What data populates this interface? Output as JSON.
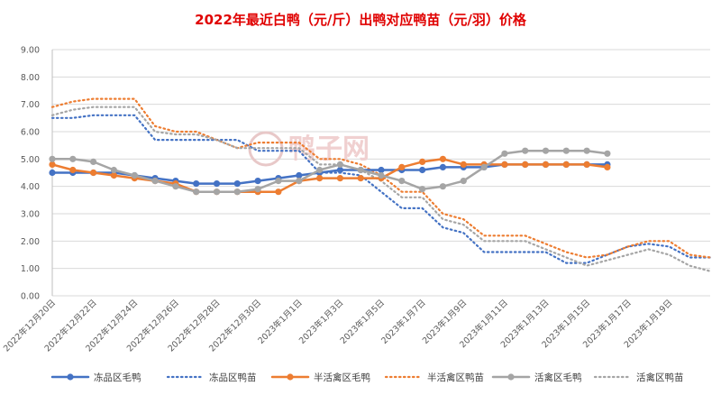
{
  "chart_data": {
    "type": "line",
    "title": "2022年最近白鸭（元/斤）出鸭对应鸭苗（元/羽）价格",
    "title_color": "#e00000",
    "watermark": "鸭子网",
    "ylim": [
      0,
      9
    ],
    "yticks": [
      "0.00",
      "1.00",
      "2.00",
      "3.00",
      "4.00",
      "5.00",
      "6.00",
      "7.00",
      "8.00",
      "9.00"
    ],
    "x_ticks": [
      "2022年12月20日",
      "2022年12月22日",
      "2022年12月24日",
      "2022年12月26日",
      "2022年12月28日",
      "2022年12月30日",
      "2023年1月1日",
      "2023年1月3日",
      "2023年1月5日",
      "2023年1月7日",
      "2023年1月9日",
      "2023年1月11日",
      "2023年1月13日",
      "2023年1月15日",
      "2023年1月17日",
      "2023年1月19日"
    ],
    "x_start": "2022-12-20",
    "x_end": "2023-01-21",
    "grid": true,
    "legend_position": "bottom",
    "series": [
      {
        "name": "冻品区毛鸭",
        "style": "solid",
        "color": "#4472c4",
        "markers": true,
        "points": [
          [
            "2022-12-20",
            4.5
          ],
          [
            "2022-12-21",
            4.5
          ],
          [
            "2022-12-22",
            4.5
          ],
          [
            "2022-12-23",
            4.5
          ],
          [
            "2022-12-24",
            4.4
          ],
          [
            "2022-12-25",
            4.3
          ],
          [
            "2022-12-26",
            4.2
          ],
          [
            "2022-12-27",
            4.1
          ],
          [
            "2022-12-28",
            4.1
          ],
          [
            "2022-12-29",
            4.1
          ],
          [
            "2022-12-30",
            4.2
          ],
          [
            "2022-12-31",
            4.3
          ],
          [
            "2023-01-01",
            4.4
          ],
          [
            "2023-01-02",
            4.5
          ],
          [
            "2023-01-03",
            4.6
          ],
          [
            "2023-01-04",
            4.6
          ],
          [
            "2023-01-05",
            4.6
          ],
          [
            "2023-01-06",
            4.6
          ],
          [
            "2023-01-07",
            4.6
          ],
          [
            "2023-01-08",
            4.7
          ],
          [
            "2023-01-09",
            4.7
          ],
          [
            "2023-01-10",
            4.7
          ],
          [
            "2023-01-11",
            4.8
          ],
          [
            "2023-01-12",
            4.8
          ],
          [
            "2023-01-13",
            4.8
          ],
          [
            "2023-01-14",
            4.8
          ],
          [
            "2023-01-15",
            4.8
          ],
          [
            "2023-01-16",
            4.8
          ]
        ]
      },
      {
        "name": "冻品区鸭苗",
        "style": "dotted",
        "color": "#4472c4",
        "markers": false,
        "points": [
          [
            "2022-12-20",
            6.5
          ],
          [
            "2022-12-21",
            6.5
          ],
          [
            "2022-12-22",
            6.6
          ],
          [
            "2022-12-23",
            6.6
          ],
          [
            "2022-12-24",
            6.6
          ],
          [
            "2022-12-25",
            5.7
          ],
          [
            "2022-12-26",
            5.7
          ],
          [
            "2022-12-27",
            5.7
          ],
          [
            "2022-12-28",
            5.7
          ],
          [
            "2022-12-29",
            5.7
          ],
          [
            "2022-12-30",
            5.3
          ],
          [
            "2022-12-31",
            5.3
          ],
          [
            "2023-01-01",
            5.3
          ],
          [
            "2023-01-02",
            4.5
          ],
          [
            "2023-01-03",
            4.5
          ],
          [
            "2023-01-04",
            4.4
          ],
          [
            "2023-01-05",
            3.8
          ],
          [
            "2023-01-06",
            3.2
          ],
          [
            "2023-01-07",
            3.2
          ],
          [
            "2023-01-08",
            2.5
          ],
          [
            "2023-01-09",
            2.3
          ],
          [
            "2023-01-10",
            1.6
          ],
          [
            "2023-01-11",
            1.6
          ],
          [
            "2023-01-12",
            1.6
          ],
          [
            "2023-01-13",
            1.6
          ],
          [
            "2023-01-14",
            1.2
          ],
          [
            "2023-01-15",
            1.2
          ],
          [
            "2023-01-16",
            1.5
          ],
          [
            "2023-01-17",
            1.8
          ],
          [
            "2023-01-18",
            1.9
          ],
          [
            "2023-01-19",
            1.8
          ],
          [
            "2023-01-20",
            1.4
          ],
          [
            "2023-01-21",
            1.4
          ]
        ]
      },
      {
        "name": "半活禽区毛鸭",
        "style": "solid",
        "color": "#ed7d31",
        "markers": true,
        "points": [
          [
            "2022-12-20",
            4.8
          ],
          [
            "2022-12-21",
            4.6
          ],
          [
            "2022-12-22",
            4.5
          ],
          [
            "2022-12-23",
            4.4
          ],
          [
            "2022-12-24",
            4.3
          ],
          [
            "2022-12-25",
            4.2
          ],
          [
            "2022-12-26",
            4.1
          ],
          [
            "2022-12-27",
            3.8
          ],
          [
            "2022-12-28",
            3.8
          ],
          [
            "2022-12-29",
            3.8
          ],
          [
            "2022-12-30",
            3.8
          ],
          [
            "2022-12-31",
            3.8
          ],
          [
            "2023-01-01",
            4.2
          ],
          [
            "2023-01-02",
            4.3
          ],
          [
            "2023-01-03",
            4.3
          ],
          [
            "2023-01-04",
            4.3
          ],
          [
            "2023-01-05",
            4.3
          ],
          [
            "2023-01-06",
            4.7
          ],
          [
            "2023-01-07",
            4.9
          ],
          [
            "2023-01-08",
            5.0
          ],
          [
            "2023-01-09",
            4.8
          ],
          [
            "2023-01-10",
            4.8
          ],
          [
            "2023-01-11",
            4.8
          ],
          [
            "2023-01-12",
            4.8
          ],
          [
            "2023-01-13",
            4.8
          ],
          [
            "2023-01-14",
            4.8
          ],
          [
            "2023-01-15",
            4.8
          ],
          [
            "2023-01-16",
            4.7
          ]
        ]
      },
      {
        "name": "半活禽区鸭苗",
        "style": "dotted",
        "color": "#ed7d31",
        "markers": false,
        "points": [
          [
            "2022-12-20",
            6.9
          ],
          [
            "2022-12-21",
            7.1
          ],
          [
            "2022-12-22",
            7.2
          ],
          [
            "2022-12-23",
            7.2
          ],
          [
            "2022-12-24",
            7.2
          ],
          [
            "2022-12-25",
            6.2
          ],
          [
            "2022-12-26",
            6.0
          ],
          [
            "2022-12-27",
            6.0
          ],
          [
            "2022-12-28",
            5.7
          ],
          [
            "2022-12-29",
            5.4
          ],
          [
            "2022-12-30",
            5.6
          ],
          [
            "2022-12-31",
            5.6
          ],
          [
            "2023-01-01",
            5.6
          ],
          [
            "2023-01-02",
            5.0
          ],
          [
            "2023-01-03",
            5.0
          ],
          [
            "2023-01-04",
            4.8
          ],
          [
            "2023-01-05",
            4.4
          ],
          [
            "2023-01-06",
            3.8
          ],
          [
            "2023-01-07",
            3.8
          ],
          [
            "2023-01-08",
            3.0
          ],
          [
            "2023-01-09",
            2.8
          ],
          [
            "2023-01-10",
            2.2
          ],
          [
            "2023-01-11",
            2.2
          ],
          [
            "2023-01-12",
            2.2
          ],
          [
            "2023-01-13",
            1.9
          ],
          [
            "2023-01-14",
            1.6
          ],
          [
            "2023-01-15",
            1.4
          ],
          [
            "2023-01-16",
            1.5
          ],
          [
            "2023-01-17",
            1.8
          ],
          [
            "2023-01-18",
            2.0
          ],
          [
            "2023-01-19",
            2.0
          ],
          [
            "2023-01-20",
            1.5
          ],
          [
            "2023-01-21",
            1.4
          ]
        ]
      },
      {
        "name": "活禽区毛鸭",
        "style": "solid",
        "color": "#a5a5a5",
        "markers": true,
        "points": [
          [
            "2022-12-20",
            5.0
          ],
          [
            "2022-12-21",
            5.0
          ],
          [
            "2022-12-22",
            4.9
          ],
          [
            "2022-12-23",
            4.6
          ],
          [
            "2022-12-24",
            4.4
          ],
          [
            "2022-12-25",
            4.2
          ],
          [
            "2022-12-26",
            4.0
          ],
          [
            "2022-12-27",
            3.8
          ],
          [
            "2022-12-28",
            3.8
          ],
          [
            "2022-12-29",
            3.8
          ],
          [
            "2022-12-30",
            3.9
          ],
          [
            "2022-12-31",
            4.2
          ],
          [
            "2023-01-01",
            4.2
          ],
          [
            "2023-01-02",
            4.6
          ],
          [
            "2023-01-03",
            4.8
          ],
          [
            "2023-01-04",
            4.6
          ],
          [
            "2023-01-05",
            4.4
          ],
          [
            "2023-01-06",
            4.2
          ],
          [
            "2023-01-07",
            3.9
          ],
          [
            "2023-01-08",
            4.0
          ],
          [
            "2023-01-09",
            4.2
          ],
          [
            "2023-01-10",
            4.7
          ],
          [
            "2023-01-11",
            5.2
          ],
          [
            "2023-01-12",
            5.3
          ],
          [
            "2023-01-13",
            5.3
          ],
          [
            "2023-01-14",
            5.3
          ],
          [
            "2023-01-15",
            5.3
          ],
          [
            "2023-01-16",
            5.2
          ]
        ]
      },
      {
        "name": "活禽区鸭苗",
        "style": "dotted",
        "color": "#a5a5a5",
        "markers": false,
        "points": [
          [
            "2022-12-20",
            6.6
          ],
          [
            "2022-12-21",
            6.8
          ],
          [
            "2022-12-22",
            6.9
          ],
          [
            "2022-12-23",
            6.9
          ],
          [
            "2022-12-24",
            6.9
          ],
          [
            "2022-12-25",
            6.0
          ],
          [
            "2022-12-26",
            5.9
          ],
          [
            "2022-12-27",
            5.9
          ],
          [
            "2022-12-28",
            5.7
          ],
          [
            "2022-12-29",
            5.4
          ],
          [
            "2022-12-30",
            5.4
          ],
          [
            "2022-12-31",
            5.4
          ],
          [
            "2023-01-01",
            5.4
          ],
          [
            "2023-01-02",
            4.8
          ],
          [
            "2023-01-03",
            4.8
          ],
          [
            "2023-01-04",
            4.6
          ],
          [
            "2023-01-05",
            4.2
          ],
          [
            "2023-01-06",
            3.6
          ],
          [
            "2023-01-07",
            3.6
          ],
          [
            "2023-01-08",
            2.8
          ],
          [
            "2023-01-09",
            2.6
          ],
          [
            "2023-01-10",
            2.0
          ],
          [
            "2023-01-11",
            2.0
          ],
          [
            "2023-01-12",
            2.0
          ],
          [
            "2023-01-13",
            1.7
          ],
          [
            "2023-01-14",
            1.4
          ],
          [
            "2023-01-15",
            1.1
          ],
          [
            "2023-01-16",
            1.3
          ],
          [
            "2023-01-17",
            1.5
          ],
          [
            "2023-01-18",
            1.7
          ],
          [
            "2023-01-19",
            1.5
          ],
          [
            "2023-01-20",
            1.1
          ],
          [
            "2023-01-21",
            0.9
          ]
        ]
      }
    ]
  }
}
